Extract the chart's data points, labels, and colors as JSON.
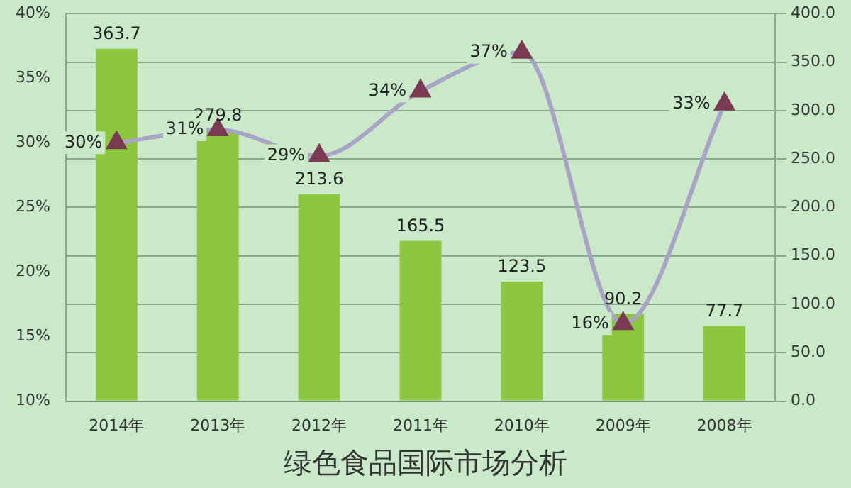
{
  "chart_data": {
    "type": "bar",
    "title": "绿色食品国际市场分析",
    "categories": [
      "2014年",
      "2013年",
      "2012年",
      "2011年",
      "2010年",
      "2009年",
      "2008年"
    ],
    "series": [
      {
        "color": "#8dc63f",
        "values": [
          363.7,
          279.8,
          213.6,
          165.5,
          123.5,
          90.2,
          77.7
        ],
        "value_labels": [
          "363.7",
          "279.8",
          "213.6",
          "165.5",
          "123.5",
          "90.2",
          "77.7"
        ]
      },
      {
        "type": "line",
        "axis": "y2",
        "color": "#7a3b52",
        "values": [
          30,
          31,
          29,
          34,
          37,
          16,
          33
        ],
        "value_labels": [
          "30%",
          "31%",
          "29%",
          "34%",
          "37%",
          "16%",
          "33%"
        ]
      }
    ],
    "ylim": [
      0,
      400
    ],
    "yticks": [
      {
        "value": 0,
        "label": "0.0"
      },
      {
        "value": 50,
        "label": "50.0"
      },
      {
        "value": 100,
        "label": "100.0"
      },
      {
        "value": 150,
        "label": "150.0"
      },
      {
        "value": 200,
        "label": "200.0"
      },
      {
        "value": 250,
        "label": "250.0"
      },
      {
        "value": 300,
        "label": "300.0"
      },
      {
        "value": 350,
        "label": "350.0"
      },
      {
        "value": 400,
        "label": "400.0"
      }
    ],
    "y2lim": [
      10,
      40
    ],
    "y2ticks": [
      {
        "value": 10,
        "label": "10%"
      },
      {
        "value": 15,
        "label": "15%"
      },
      {
        "value": 20,
        "label": "20%"
      },
      {
        "value": 25,
        "label": "25%"
      },
      {
        "value": 30,
        "label": "30%"
      },
      {
        "value": 35,
        "label": "35%"
      },
      {
        "value": 40,
        "label": "40%"
      }
    ],
    "grid": "y",
    "marker": "triangle",
    "legend": false
  }
}
